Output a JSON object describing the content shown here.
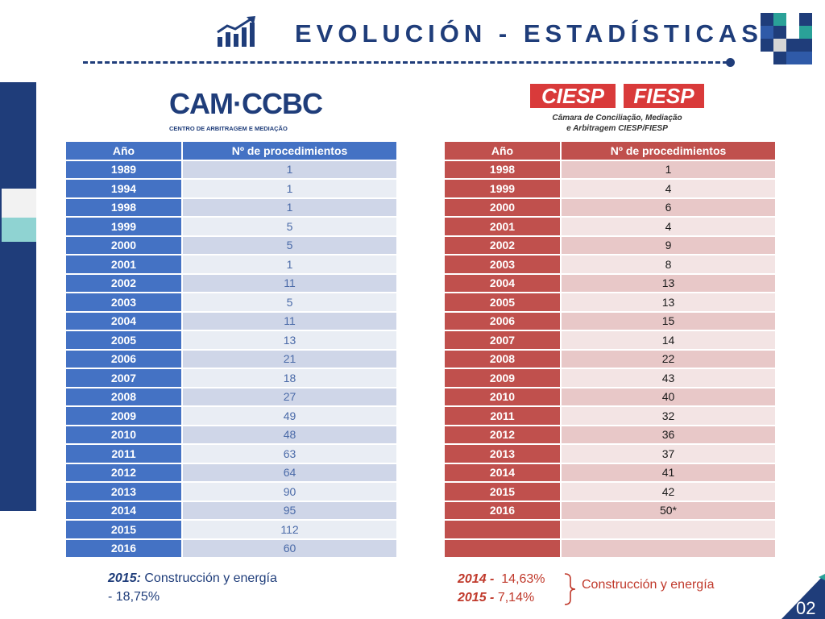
{
  "header": {
    "title": "EVOLUCIÓN - ESTADÍSTICAS",
    "icon": "bar-chart-trend-icon",
    "accent_color": "#1f3d7a"
  },
  "logos": {
    "cam": {
      "wordmark": "CAM·CCBC",
      "subtitle": "CENTRO DE ARBITRAGEM E MEDIAÇÃO"
    },
    "ciesp": {
      "box1": "CIESP",
      "box2": "FIESP",
      "subtitle_line1": "Câmara de Conciliação, Mediação",
      "subtitle_line2": "e Arbitragem CIESP/FIESP"
    }
  },
  "table_left": {
    "headers": [
      "Año",
      "Nº de procedimientos"
    ],
    "rows": [
      [
        "1989",
        "1"
      ],
      [
        "1994",
        "1"
      ],
      [
        "1998",
        "1"
      ],
      [
        "1999",
        "5"
      ],
      [
        "2000",
        "5"
      ],
      [
        "2001",
        "1"
      ],
      [
        "2002",
        "11"
      ],
      [
        "2003",
        "5"
      ],
      [
        "2004",
        "11"
      ],
      [
        "2005",
        "13"
      ],
      [
        "2006",
        "21"
      ],
      [
        "2007",
        "18"
      ],
      [
        "2008",
        "27"
      ],
      [
        "2009",
        "49"
      ],
      [
        "2010",
        "48"
      ],
      [
        "2011",
        "63"
      ],
      [
        "2012",
        "64"
      ],
      [
        "2013",
        "90"
      ],
      [
        "2014",
        "95"
      ],
      [
        "2015",
        "112"
      ],
      [
        "2016",
        "60"
      ]
    ]
  },
  "table_right": {
    "headers": [
      "Año",
      "Nº de procedimientos"
    ],
    "rows": [
      [
        "1998",
        "1"
      ],
      [
        "1999",
        "4"
      ],
      [
        "2000",
        "6"
      ],
      [
        "2001",
        "4"
      ],
      [
        "2002",
        "9"
      ],
      [
        "2003",
        "8"
      ],
      [
        "2004",
        "13"
      ],
      [
        "2005",
        "13"
      ],
      [
        "2006",
        "15"
      ],
      [
        "2007",
        "14"
      ],
      [
        "2008",
        "22"
      ],
      [
        "2009",
        "43"
      ],
      [
        "2010",
        "40"
      ],
      [
        "2011",
        "32"
      ],
      [
        "2012",
        "36"
      ],
      [
        "2013",
        "37"
      ],
      [
        "2014",
        "41"
      ],
      [
        "2015",
        "42"
      ],
      [
        "2016",
        "50*"
      ],
      [
        "",
        ""
      ],
      [
        "",
        ""
      ]
    ]
  },
  "notes": {
    "left_year": "2015:",
    "left_text": " Construcción y energía",
    "left_line2": "- 18,75%",
    "right_line1_year": "2014 -",
    "right_line1_value": "  14,63%",
    "right_line2_year": "2015 -",
    "right_line2_value": " 7,14%",
    "right_category": "Construcción y energía"
  },
  "page_number": "02"
}
